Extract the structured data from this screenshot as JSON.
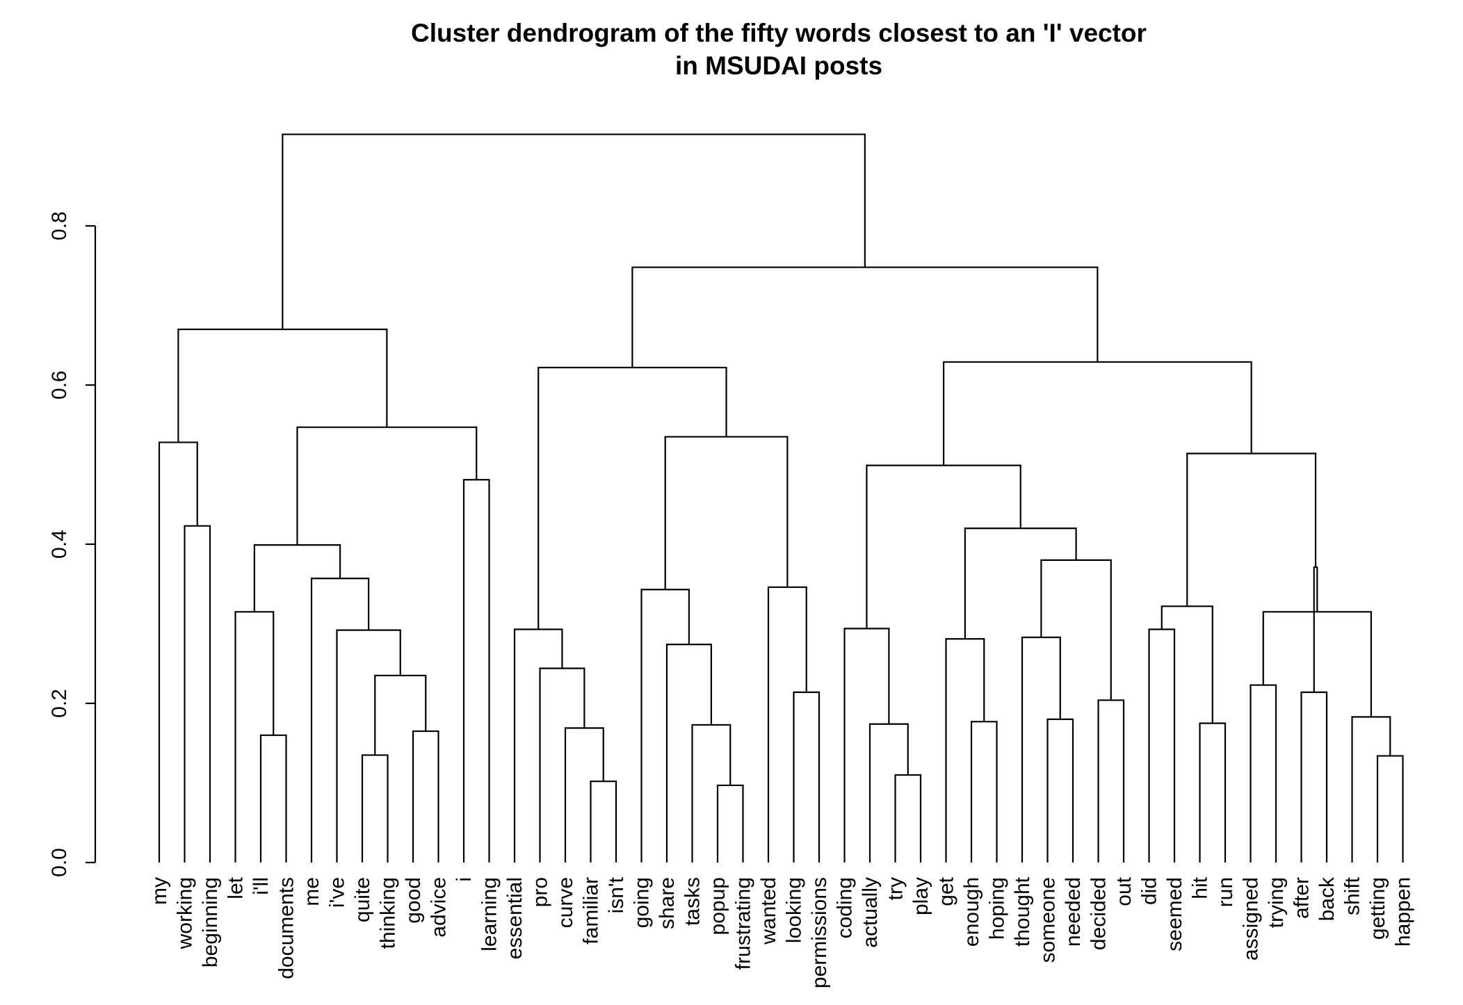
{
  "chart_data": {
    "type": "dendrogram",
    "title": "Cluster dendrogram of the fifty words closest to an 'I' vector",
    "subtitle": "in MSUDAI posts",
    "ylim": [
      0.0,
      0.8
    ],
    "yticks": [
      "0.0",
      "0.2",
      "0.4",
      "0.6",
      "0.8"
    ],
    "leaves": [
      "my",
      "working",
      "beginning",
      "let",
      "i'll",
      "documents",
      "me",
      "i've",
      "quite",
      "thinking",
      "good",
      "advice",
      "i",
      "learning",
      "essential",
      "pro",
      "curve",
      "familiar",
      "isn't",
      "going",
      "share",
      "tasks",
      "popup",
      "frustrating",
      "wanted",
      "looking",
      "permissions",
      "coding",
      "actually",
      "try",
      "play",
      "get",
      "enough",
      "hoping",
      "thought",
      "someone",
      "needed",
      "decided",
      "out",
      "did",
      "seemed",
      "hit",
      "run",
      "assigned",
      "trying",
      "after",
      "back",
      "shift",
      "getting",
      "happen"
    ],
    "merges": [
      {
        "a": "getting",
        "b": "happen",
        "height": 0.134
      },
      {
        "a": "quite",
        "b": "thinking",
        "height": 0.135
      },
      {
        "a": "decided",
        "b": "out",
        "height": 0.204
      },
      {
        "a": "tasks",
        "b": "popup",
        "height": 0.097
      },
      {
        "a": "familiar",
        "b": "isn't",
        "height": 0.102
      },
      {
        "a": "try",
        "b": "play",
        "height": 0.11
      },
      {
        "a": "i'll",
        "b": "documents",
        "height": 0.16
      },
      {
        "a": "good",
        "b": "advice",
        "height": 0.165
      },
      {
        "a": "curve",
        "b": "N5",
        "height": 0.169
      },
      {
        "a": "share",
        "b": "N4",
        "height": 0.173
      },
      {
        "a": "actually",
        "b": "N6",
        "height": 0.174
      },
      {
        "a": "hit",
        "b": "run",
        "height": 0.175
      },
      {
        "a": "enough",
        "b": "hoping",
        "height": 0.177
      },
      {
        "a": "someone",
        "b": "needed",
        "height": 0.18
      },
      {
        "a": "shift",
        "b": "N1",
        "height": 0.183
      },
      {
        "a": "looking",
        "b": "permissions",
        "height": 0.214
      },
      {
        "a": "after",
        "b": "back",
        "height": 0.214
      },
      {
        "a": "assigned",
        "b": "trying",
        "height": 0.223
      },
      {
        "a": "N2",
        "b": "N8",
        "height": 0.235
      },
      {
        "a": "pro",
        "b": "N9",
        "height": 0.244
      },
      {
        "a": "N10",
        "b": "going",
        "height": 0.274
      },
      {
        "a": "get",
        "b": "N13",
        "height": 0.281
      },
      {
        "a": "thought",
        "b": "N14",
        "height": 0.283
      },
      {
        "a": "i've",
        "b": "N19",
        "height": 0.292
      },
      {
        "a": "did",
        "b": "seemed",
        "height": 0.293
      },
      {
        "a": "essential",
        "b": "N20",
        "height": 0.293
      },
      {
        "a": "coding",
        "b": "N11",
        "height": 0.294
      },
      {
        "a": "N15",
        "b": "N17",
        "height": 0.315
      },
      {
        "a": "let",
        "b": "N7",
        "height": 0.315
      },
      {
        "a": "N12",
        "b": "N18",
        "height": 0.322
      },
      {
        "a": "N21",
        "b": "frustrating",
        "height": 0.343
      },
      {
        "a": "wanted",
        "b": "N16",
        "height": 0.346
      },
      {
        "a": "me",
        "b": "N24",
        "height": 0.357
      },
      {
        "a": "N28",
        "b": "N30",
        "height": 0.371
      },
      {
        "a": "N23",
        "b": "N25",
        "height": 0.38
      },
      {
        "a": "N29",
        "b": "N33",
        "height": 0.399
      },
      {
        "a": "N22",
        "b": "N35",
        "height": 0.42
      },
      {
        "a": "working",
        "b": "beginning",
        "height": 0.423
      },
      {
        "a": "i",
        "b": "learning",
        "height": 0.481
      },
      {
        "a": "N27",
        "b": "N37",
        "height": 0.499
      },
      {
        "a": "N34",
        "b": "N30b",
        "height": 0.514
      },
      {
        "a": "N31",
        "b": "N32",
        "height": 0.535
      },
      {
        "a": "N36",
        "b": "N39",
        "height": 0.547
      },
      {
        "a": "my",
        "b": "N38",
        "height": 0.528
      },
      {
        "a": "N26",
        "b": "N42",
        "height": 0.622
      },
      {
        "a": "N40",
        "b": "N41",
        "height": 0.629
      },
      {
        "a": "N44",
        "b": "N43",
        "height": 0.67
      },
      {
        "a": "N45",
        "b": "N46",
        "height": 0.748
      },
      {
        "a": "N47",
        "b": "N48",
        "height": 0.915
      }
    ]
  }
}
